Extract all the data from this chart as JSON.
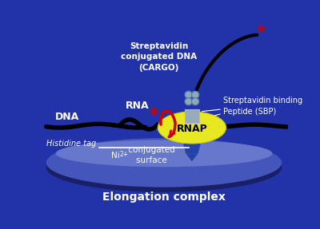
{
  "bg_color": "#2233AA",
  "title": "Elongation complex",
  "title_color": "white",
  "title_fontsize": 10,
  "dna_label": "DNA",
  "rna_label": "RNA",
  "histidine_label": "Histidine tag",
  "ni_label_1": "Ni ",
  "ni_label_2": "2+",
  "ni_label_3": " conjugated\n    surface",
  "rnap_label": "RNAP",
  "cargo_label": "Streptavidin\nconjugated DNA\n(CARGO)",
  "sbp_label": "Streptavidin binding\nPeptide (SBP)",
  "label_color": "white",
  "rnap_color": "#E8E820",
  "rnap_text_color": "black",
  "surface_top_color": "#6677CC",
  "surface_body_color": "#4455BB",
  "surface_dark_color": "#1a2066",
  "linker_color": "#99AABB",
  "streptavidin_color": "#88AABB",
  "dna_color": "black",
  "rna_color": "#CC0000",
  "cargo_dna_color": "black",
  "red_star_color": "#CC0000",
  "histidine_line_color": "white",
  "stem_color": "#3355AA"
}
